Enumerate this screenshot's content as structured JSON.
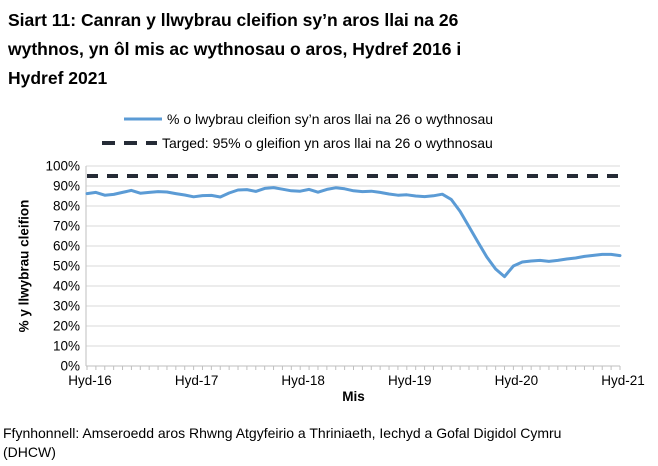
{
  "title": {
    "lines": [
      "Siart 11: Canran y llwybrau cleifion sy’n aros llai na 26",
      "wythnos, yn ôl mis ac wythnosau o aros, Hydref 2016 i",
      "Hydref 2021"
    ]
  },
  "legend": {
    "series_label": "% o lwybrau cleifion sy’n aros llai na 26 o wythnosau",
    "target_label": "Targed: 95% o gleifion yn aros llai na 26 o wythnosau"
  },
  "footer": {
    "line1": "Ffynhonnell: Amseroedd aros Rhwng Atgyfeirio a Thriniaeth, Iechyd a Gofal Digidol Cymru",
    "line2": "(DHCW)"
  },
  "colors": {
    "series_line": "#5B9BD5",
    "target_line": "#252B36",
    "gridline": "#D9D9D9",
    "axis": "#BFBFBF",
    "text": "#000000",
    "background": "#FFFFFF"
  },
  "chart_data": {
    "type": "line",
    "title": "Siart 11: Canran y llwybrau cleifion sy’n aros llai na 26 wythnos, yn ôl mis ac wythnosau o aros, Hydref 2016 i Hydref 2021",
    "xlabel": "Mis",
    "ylabel": "% y llwybrau cleifion",
    "ylim": [
      0,
      100
    ],
    "grid": true,
    "legend_position": "top",
    "x_tick_labels": [
      "Hyd-16",
      "Hyd-17",
      "Hyd-18",
      "Hyd-19",
      "Hyd-20",
      "Hyd-21"
    ],
    "x_tick_positions": [
      0,
      12,
      24,
      36,
      48,
      60
    ],
    "y_tick_labels": [
      "0%",
      "10%",
      "20%",
      "30%",
      "40%",
      "50%",
      "60%",
      "70%",
      "80%",
      "90%",
      "100%"
    ],
    "y_tick_values": [
      0,
      10,
      20,
      30,
      40,
      50,
      60,
      70,
      80,
      90,
      100
    ],
    "series": [
      {
        "name": "% o lwybrau cleifion sy’n aros llai na 26 o wythnosau",
        "style": "solid",
        "values": [
          86.2,
          86.8,
          85.4,
          85.8,
          86.8,
          87.8,
          86.4,
          86.8,
          87.2,
          87.0,
          86.2,
          85.5,
          84.6,
          85.2,
          85.3,
          84.5,
          86.5,
          88.0,
          88.2,
          87.3,
          88.8,
          89.2,
          88.4,
          87.6,
          87.4,
          88.3,
          86.9,
          88.3,
          89.1,
          88.6,
          87.6,
          87.2,
          87.4,
          86.8,
          86.0,
          85.4,
          85.6,
          85.0,
          84.7,
          85.1,
          85.9,
          83.3,
          77.3,
          69.7,
          62.0,
          54.5,
          48.5,
          44.7,
          50.0,
          52.0,
          52.5,
          52.8,
          52.3,
          52.8,
          53.5,
          54.0,
          54.8,
          55.3,
          55.8,
          55.8,
          55.2
        ]
      },
      {
        "name": "Targed: 95% o gleifion yn aros llai na 26 o wythnosau",
        "style": "dashed",
        "constant": 95
      }
    ]
  }
}
